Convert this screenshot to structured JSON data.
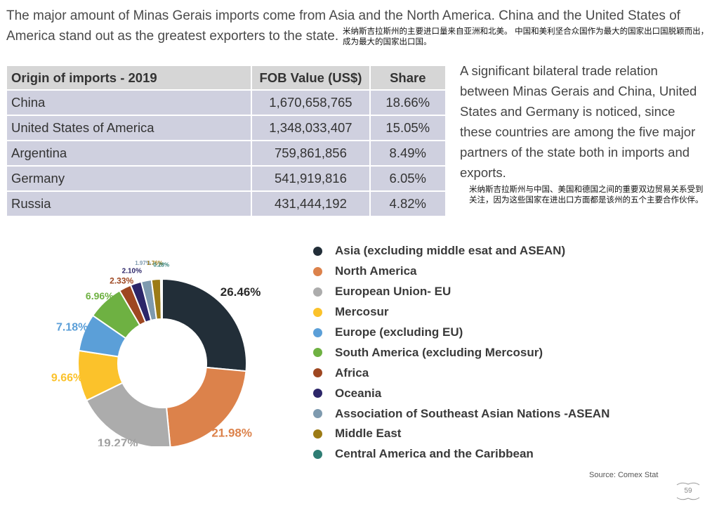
{
  "heading": "The major amount of Minas Gerais imports come from Asia and the North America. China and the United States of America stand out as the greatest exporters to the state.",
  "heading_cn": "米纳斯吉拉斯州的主要进口量来自亚洲和北美。 中国和美利坚合众国作为最大的国家出口国脱颖而出，成为最大的国家出口国。",
  "table": {
    "headers": [
      "Origin of imports - 2019",
      "FOB Value (US$)",
      "Share"
    ],
    "rows": [
      {
        "origin": "China",
        "fob": "1,670,658,765",
        "share": "18.66%"
      },
      {
        "origin": "United States of America",
        "fob": "1,348,033,407",
        "share": "15.05%"
      },
      {
        "origin": "Argentina",
        "fob": "759,861,856",
        "share": "8.49%"
      },
      {
        "origin": "Germany",
        "fob": "541,919,816",
        "share": "6.05%"
      },
      {
        "origin": "Russia",
        "fob": "431,444,192",
        "share": "4.82%"
      }
    ]
  },
  "note": "A significant bilateral trade relation between Minas Gerais and China, United States and Germany is noticed, since these countries are among the five major partners of the state both in imports and exports.",
  "note_cn": "米纳斯吉拉斯州与中国、美国和德国之间的重要双边贸易关系受到关注，因为这些国家在进出口方面都是该州的五个主要合作伙伴。",
  "chart_data": {
    "type": "pie",
    "donut": true,
    "legend_position": "right",
    "labels": [
      "Asia (excluding middle esat and ASEAN)",
      "North America",
      "European Union- EU",
      "Mercosur",
      "Europe (excluding EU)",
      "South America (excluding Mercosur)",
      "Africa",
      "Oceania",
      "Association of Southeast Asian Nations -ASEAN",
      "Middle East",
      "Central America and the Caribbean"
    ],
    "values": [
      26.46,
      21.98,
      19.27,
      9.66,
      7.18,
      6.96,
      2.33,
      2.1,
      1.97,
      1.76,
      0.28
    ],
    "value_labels": [
      "26.46%",
      "21.98%",
      "19.27%",
      "9.66%",
      "7.18%",
      "6.96%",
      "2.33%",
      "2.10%",
      "1.97%",
      "1.76%",
      "0.28%"
    ],
    "colors": [
      "#222e38",
      "#dc824b",
      "#acacac",
      "#fbc22b",
      "#5b9fd8",
      "#6eb142",
      "#9e4721",
      "#2c2669",
      "#7e9aaf",
      "#9c7b15",
      "#2e7d74"
    ]
  },
  "source": "Source: Comex Stat",
  "page_number": "59"
}
